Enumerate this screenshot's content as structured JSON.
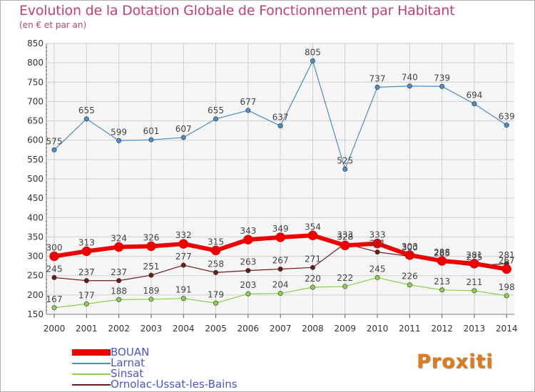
{
  "title": "Evolution de la Dotation Globale de Fonctionnement par Habitant",
  "subtitle": "(en € et par an)",
  "brand": "Proxiti",
  "chart_data": {
    "type": "line",
    "title": "Evolution de la Dotation Globale de Fonctionnement par Habitant",
    "subtitle": "(en € et par an)",
    "xlabel": "",
    "ylabel": "",
    "x": [
      "2000",
      "2001",
      "2002",
      "2003",
      "2004",
      "2005",
      "2006",
      "2007",
      "2008",
      "2009",
      "2010",
      "2011",
      "2012",
      "2013",
      "2014"
    ],
    "ylim": [
      150,
      850
    ],
    "yticks": [
      150,
      200,
      250,
      300,
      350,
      400,
      450,
      500,
      550,
      600,
      650,
      700,
      750,
      800,
      850
    ],
    "grid": true,
    "legend_position": "bottom-left",
    "series": [
      {
        "name": "BOUAN",
        "color": "#ee0000",
        "values": [
          300,
          313,
          324,
          326,
          332,
          315,
          343,
          349,
          354,
          328,
          333,
          303,
          288,
          281,
          267
        ]
      },
      {
        "name": "Larnat",
        "color": "#4a8ec8",
        "values": [
          575,
          655,
          599,
          601,
          607,
          655,
          677,
          637,
          805,
          525,
          737,
          740,
          739,
          694,
          639
        ]
      },
      {
        "name": "Sinsat",
        "color": "#8ccf4a",
        "values": [
          167,
          177,
          188,
          189,
          191,
          179,
          203,
          204,
          220,
          222,
          245,
          226,
          213,
          211,
          198
        ]
      },
      {
        "name": "Ornolac-Ussat-les-Bains",
        "color": "#6b1a1a",
        "values": [
          245,
          237,
          237,
          251,
          277,
          258,
          263,
          267,
          271,
          333,
          311,
          300,
          285,
          275,
          281
        ]
      }
    ]
  }
}
